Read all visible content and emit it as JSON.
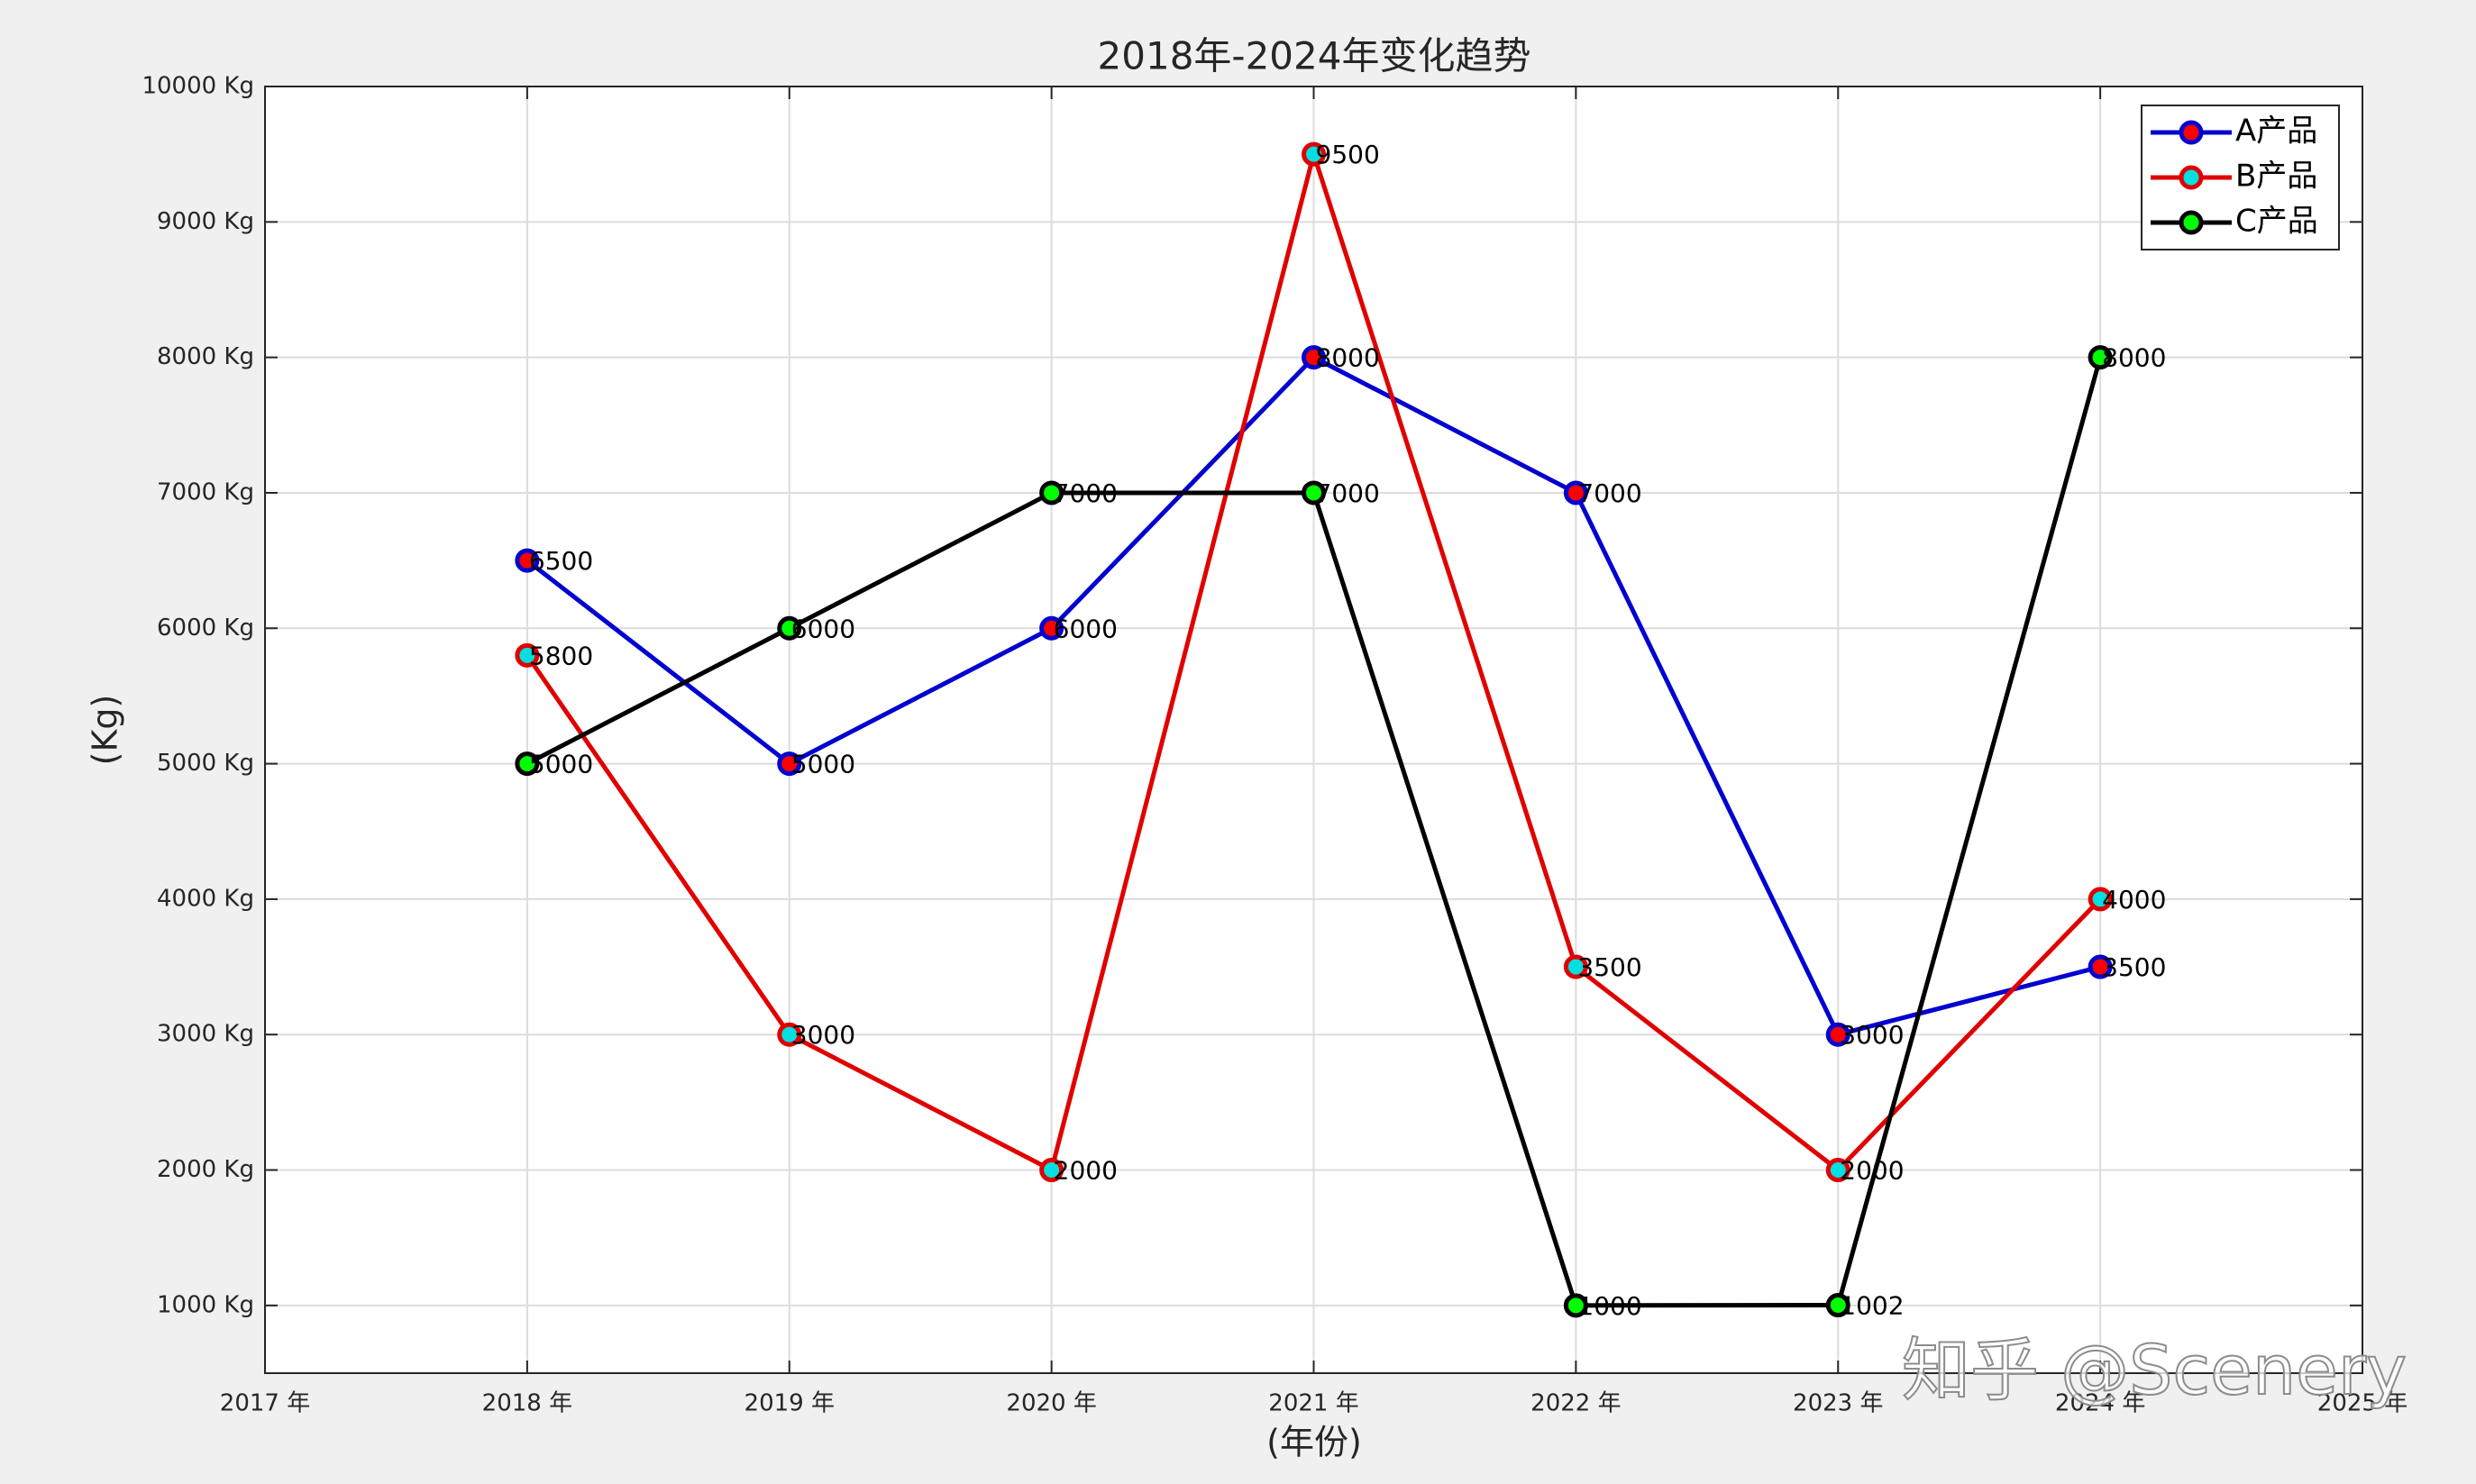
{
  "chart_data": {
    "type": "line",
    "title": "2018年-2024年变化趋势",
    "xlabel": "(年份)",
    "ylabel": "(Kg)",
    "x": [
      2018,
      2019,
      2020,
      2021,
      2022,
      2023,
      2024
    ],
    "series": [
      {
        "name": "A产品",
        "color": "#0000d0",
        "marker_fill": "#ff0000",
        "values": [
          6500,
          5000,
          6000,
          8000,
          7000,
          3000,
          3500
        ]
      },
      {
        "name": "B产品",
        "color": "#e00000",
        "marker_fill": "#00e0e0",
        "values": [
          5800,
          3000,
          2000,
          9500,
          3500,
          2000,
          4000
        ]
      },
      {
        "name": "C产品",
        "color": "#000000",
        "marker_fill": "#00ff00",
        "values": [
          5000,
          6000,
          7000,
          7000,
          1000,
          1002,
          8000
        ]
      }
    ],
    "xlim": [
      2017,
      2025
    ],
    "xticks": [
      {
        "value": 2017,
        "label": "2017 年"
      },
      {
        "value": 2018,
        "label": "2018 年"
      },
      {
        "value": 2019,
        "label": "2019 年"
      },
      {
        "value": 2020,
        "label": "2020 年"
      },
      {
        "value": 2021,
        "label": "2021 年"
      },
      {
        "value": 2022,
        "label": "2022 年"
      },
      {
        "value": 2023,
        "label": "2023 年"
      },
      {
        "value": 2024,
        "label": "2024 年"
      },
      {
        "value": 2025,
        "label": "2025 年"
      }
    ],
    "ylim": [
      500,
      10000
    ],
    "yticks": [
      {
        "value": 1000,
        "label": "1000 Kg"
      },
      {
        "value": 2000,
        "label": "2000 Kg"
      },
      {
        "value": 3000,
        "label": "3000 Kg"
      },
      {
        "value": 4000,
        "label": "4000 Kg"
      },
      {
        "value": 5000,
        "label": "5000 Kg"
      },
      {
        "value": 6000,
        "label": "6000 Kg"
      },
      {
        "value": 7000,
        "label": "7000 Kg"
      },
      {
        "value": 8000,
        "label": "8000 Kg"
      },
      {
        "value": 9000,
        "label": "9000 Kg"
      },
      {
        "value": 10000,
        "label": "10000 Kg"
      }
    ],
    "grid": true,
    "legend": "upper right",
    "data_labels": true,
    "watermark": "知乎 @Scenery"
  }
}
